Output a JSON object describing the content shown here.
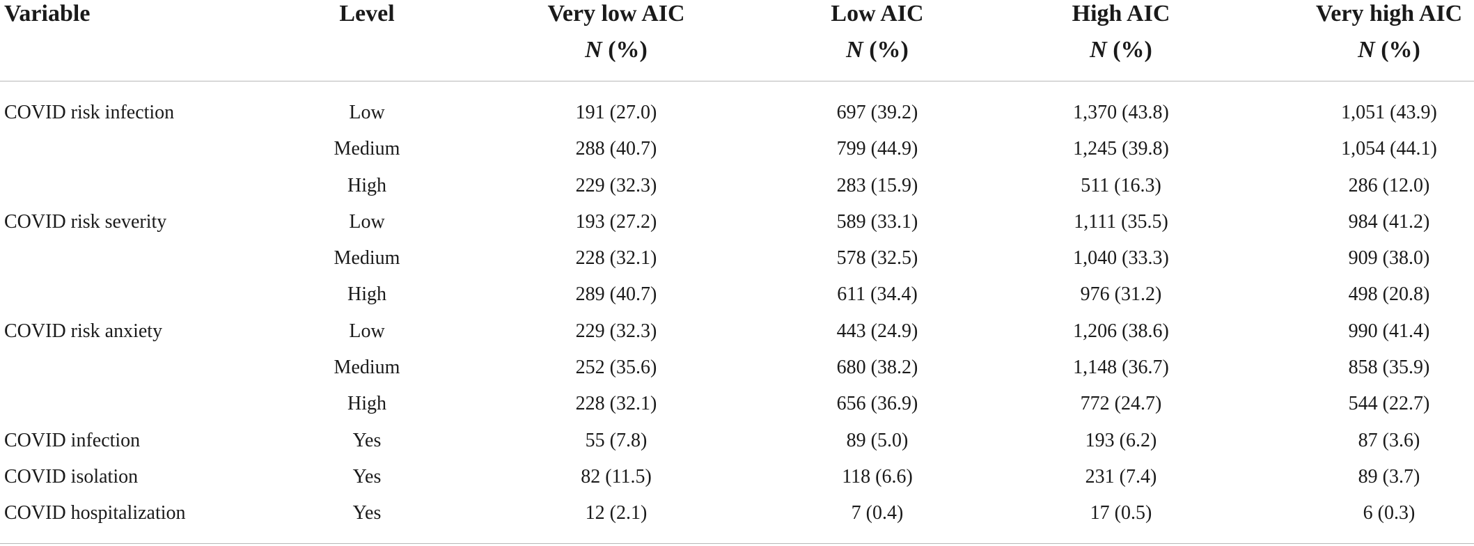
{
  "table": {
    "headers": {
      "variable": "Variable",
      "level": "Level",
      "columns": [
        {
          "label": "Very low AIC",
          "sub_n": "N",
          "sub_pct": " (%)"
        },
        {
          "label": "Low AIC",
          "sub_n": "N",
          "sub_pct": " (%)"
        },
        {
          "label": "High AIC",
          "sub_n": "N",
          "sub_pct": " (%)"
        },
        {
          "label": "Very high AIC",
          "sub_n": "N",
          "sub_pct": " (%)"
        }
      ]
    },
    "rows": [
      {
        "variable": "COVID risk infection",
        "level": "Low",
        "values": [
          "191 (27.0)",
          "697 (39.2)",
          "1,370 (43.8)",
          "1,051 (43.9)"
        ]
      },
      {
        "variable": "",
        "level": "Medium",
        "values": [
          "288 (40.7)",
          "799 (44.9)",
          "1,245 (39.8)",
          "1,054 (44.1)"
        ]
      },
      {
        "variable": "",
        "level": "High",
        "values": [
          "229 (32.3)",
          "283 (15.9)",
          "511 (16.3)",
          "286 (12.0)"
        ]
      },
      {
        "variable": "COVID risk severity",
        "level": "Low",
        "values": [
          "193 (27.2)",
          "589 (33.1)",
          "1,111 (35.5)",
          "984 (41.2)"
        ]
      },
      {
        "variable": "",
        "level": "Medium",
        "values": [
          "228 (32.1)",
          "578 (32.5)",
          "1,040 (33.3)",
          "909 (38.0)"
        ]
      },
      {
        "variable": "",
        "level": "High",
        "values": [
          "289 (40.7)",
          "611 (34.4)",
          "976 (31.2)",
          "498 (20.8)"
        ]
      },
      {
        "variable": "COVID risk anxiety",
        "level": "Low",
        "values": [
          "229 (32.3)",
          "443 (24.9)",
          "1,206 (38.6)",
          "990 (41.4)"
        ]
      },
      {
        "variable": "",
        "level": "Medium",
        "values": [
          "252 (35.6)",
          "680 (38.2)",
          "1,148 (36.7)",
          "858 (35.9)"
        ]
      },
      {
        "variable": "",
        "level": "High",
        "values": [
          "228 (32.1)",
          "656 (36.9)",
          "772 (24.7)",
          "544 (22.7)"
        ]
      },
      {
        "variable": "COVID infection",
        "level": "Yes",
        "values": [
          "55 (7.8)",
          "89 (5.0)",
          "193 (6.2)",
          "87 (3.6)"
        ]
      },
      {
        "variable": "COVID isolation",
        "level": "Yes",
        "values": [
          "82 (11.5)",
          "118 (6.6)",
          "231 (7.4)",
          "89 (3.7)"
        ]
      },
      {
        "variable": "COVID hospitalization",
        "level": "Yes",
        "values": [
          "12 (2.1)",
          "7 (0.4)",
          "17 (0.5)",
          "6 (0.3)"
        ]
      }
    ]
  }
}
